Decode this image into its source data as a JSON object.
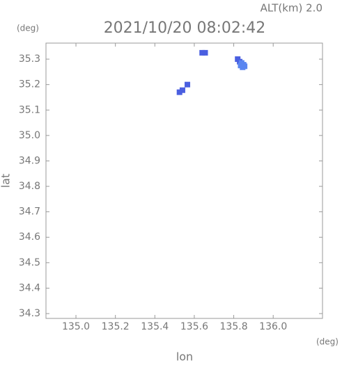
{
  "chart_data": {
    "type": "scatter",
    "title": "2021/10/20 08:02:42",
    "subtitle": "ALT(km) 2.0",
    "x_label": "lon",
    "y_label": "lat",
    "x_unit": "(deg)",
    "y_unit": "(deg)",
    "xlim": [
      134.848,
      136.25
    ],
    "ylim": [
      34.281,
      35.363
    ],
    "xticks": [
      {
        "value": 135.0,
        "label": "135.0"
      },
      135.2,
      135.4,
      135.6,
      135.8,
      {
        "value": 136.0,
        "label": "136.0"
      }
    ],
    "yticks": [
      34.3,
      34.4,
      34.5,
      34.6,
      34.7,
      34.8,
      34.9,
      {
        "value": 35.0,
        "label": "35.0"
      },
      35.1,
      35.2,
      35.3
    ],
    "series": [
      {
        "color": "#4a5fe0",
        "x": [
          135.64,
          135.655,
          135.525,
          135.54,
          135.565,
          135.82,
          135.83
        ],
        "y": [
          35.325,
          35.325,
          35.17,
          35.178,
          35.2,
          35.3,
          35.29
        ]
      },
      {
        "color": "#5a86f0",
        "x": [
          135.84,
          135.85,
          135.845,
          135.855,
          135.835
        ],
        "y": [
          35.285,
          35.278,
          35.268,
          35.272,
          35.275
        ]
      }
    ]
  }
}
